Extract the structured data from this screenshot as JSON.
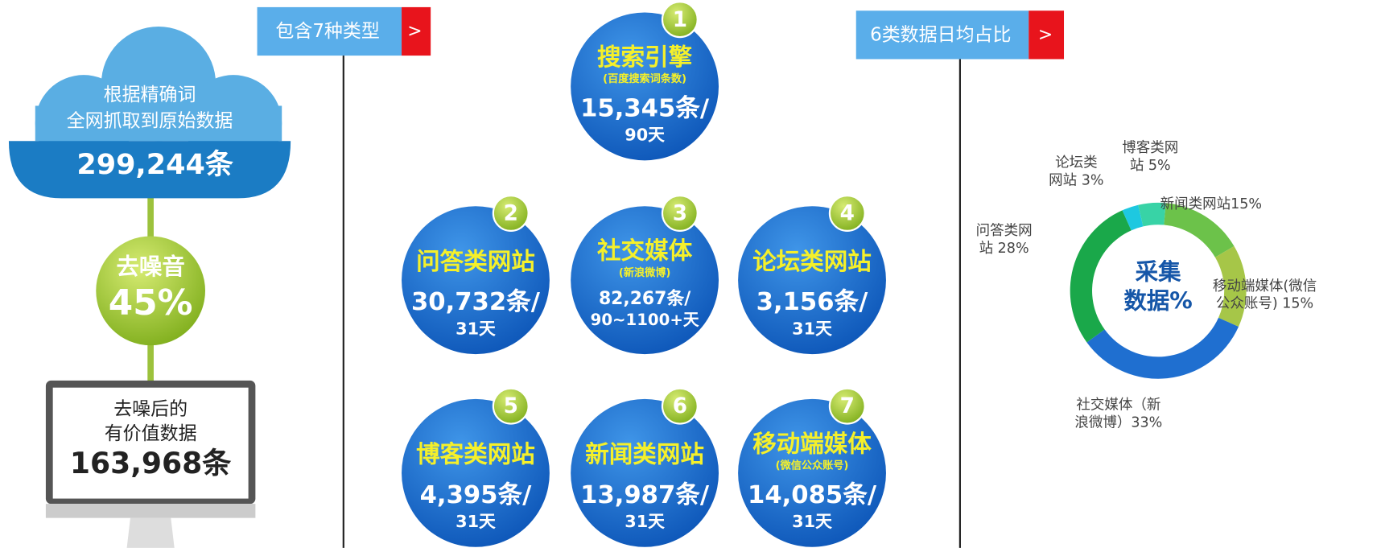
{
  "left": {
    "cloud": [
      "根据精确词",
      "全网抓取到原始数据"
    ],
    "raw_count": "299,244条",
    "denoise": "去噪音",
    "denoise_pct": "45%",
    "monitor": [
      "去噪后的",
      "有价值数据"
    ],
    "valuable_count": "163,968条"
  },
  "types_tab": {
    "label": "包含7种类型",
    "arrow": ">"
  },
  "sources": [
    {
      "num": "1",
      "name": "搜索引擎",
      "sub": "(百度搜索词条数)",
      "count": "15,345条/",
      "period": "90天"
    },
    {
      "num": "2",
      "name": "问答类网站",
      "count": "30,732条/",
      "period": "31天"
    },
    {
      "num": "3",
      "name": "社交媒体",
      "sub": "(新浪微博)",
      "count": "82,267条/",
      "period": "90~1100+天"
    },
    {
      "num": "4",
      "name": "论坛类网站",
      "count": "3,156条/",
      "period": "31天"
    },
    {
      "num": "5",
      "name": "博客类网站",
      "count": "4,395条/",
      "period": "31天"
    },
    {
      "num": "6",
      "name": "新闻类网站",
      "count": "13,987条/",
      "period": "31天"
    },
    {
      "num": "7",
      "name": "移动端媒体",
      "sub": "(微信公众账号)",
      "count": "14,085条/",
      "period": "31天"
    }
  ],
  "share_tab": {
    "label": "6类数据日均占比",
    "arrow": ">"
  },
  "donut": {
    "center": [
      "采集",
      "数据%"
    ],
    "segments": [
      {
        "label": [
          "论坛类",
          "网站 3%"
        ],
        "value": 3,
        "color": "#1ec8e0"
      },
      {
        "label": [
          "博客类网",
          "站 5%"
        ],
        "value": 5,
        "color": "#38d3a6"
      },
      {
        "label": [
          "新闻类网站15%"
        ],
        "value": 15,
        "color": "#6cc24a"
      },
      {
        "label": [
          "移动端媒体(微信",
          "公众账号) 15%"
        ],
        "value": 15,
        "color": "#a6c648"
      },
      {
        "label": [
          "社交媒体（新",
          "浪微博）33%"
        ],
        "value": 33,
        "color": "#1f6fd0"
      },
      {
        "label": [
          "问答类网",
          "站 28%"
        ],
        "value": 28,
        "color": "#1aa84a"
      }
    ]
  }
}
